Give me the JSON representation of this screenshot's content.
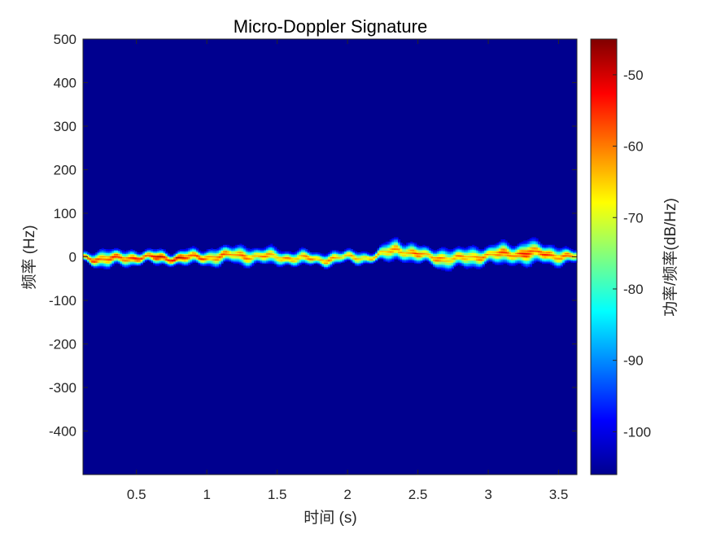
{
  "chart_data": {
    "type": "heatmap",
    "title": "Micro-Doppler Signature",
    "xlabel": "时间 (s)",
    "ylabel": "频率 (Hz)",
    "colorbar_label": "功率/频率(dB/Hz)",
    "colormap": "jet",
    "xlim": [
      0.12,
      3.63
    ],
    "ylim": [
      -500,
      500
    ],
    "x_ticks": [
      0.5,
      1,
      1.5,
      2,
      2.5,
      3,
      3.5
    ],
    "x_tick_labels": [
      "0.5",
      "1",
      "1.5",
      "2",
      "2.5",
      "3",
      "3.5"
    ],
    "y_ticks": [
      500,
      400,
      300,
      200,
      100,
      0,
      -100,
      -200,
      -300,
      -400
    ],
    "y_tick_labels": [
      "500",
      "400",
      "300",
      "200",
      "100",
      "0",
      "-100",
      "-200",
      "-300",
      "-400"
    ],
    "clim": [
      -106,
      -45
    ],
    "colorbar_ticks": [
      -50,
      -60,
      -70,
      -80,
      -90,
      -100
    ],
    "colorbar_tick_labels": [
      "-50",
      "-60",
      "-70",
      "-80",
      "-90",
      "-100"
    ],
    "background_level_db": -106,
    "signature": {
      "description_points": [
        {
          "t": 0.12,
          "f": 0,
          "width": 20,
          "peak_db": -55
        },
        {
          "t": 0.3,
          "f": -5,
          "width": 35,
          "peak_db": -54
        },
        {
          "t": 0.5,
          "f": 0,
          "width": 25,
          "peak_db": -53
        },
        {
          "t": 0.75,
          "f": -2,
          "width": 25,
          "peak_db": -48
        },
        {
          "t": 1.0,
          "f": 0,
          "width": 30,
          "peak_db": -56
        },
        {
          "t": 1.2,
          "f": 5,
          "width": 35,
          "peak_db": -57
        },
        {
          "t": 1.5,
          "f": 0,
          "width": 30,
          "peak_db": -60
        },
        {
          "t": 1.8,
          "f": -5,
          "width": 25,
          "peak_db": -58
        },
        {
          "t": 2.0,
          "f": 0,
          "width": 25,
          "peak_db": -62
        },
        {
          "t": 2.2,
          "f": 0,
          "width": 20,
          "peak_db": -60
        },
        {
          "t": 2.35,
          "f": 20,
          "width": 45,
          "peak_db": -60
        },
        {
          "t": 2.5,
          "f": 5,
          "width": 30,
          "peak_db": -57
        },
        {
          "t": 2.75,
          "f": -5,
          "width": 40,
          "peak_db": -60
        },
        {
          "t": 3.0,
          "f": 5,
          "width": 35,
          "peak_db": -58
        },
        {
          "t": 3.3,
          "f": 10,
          "width": 45,
          "peak_db": -53
        },
        {
          "t": 3.63,
          "f": 0,
          "width": 25,
          "peak_db": -58
        }
      ]
    }
  }
}
